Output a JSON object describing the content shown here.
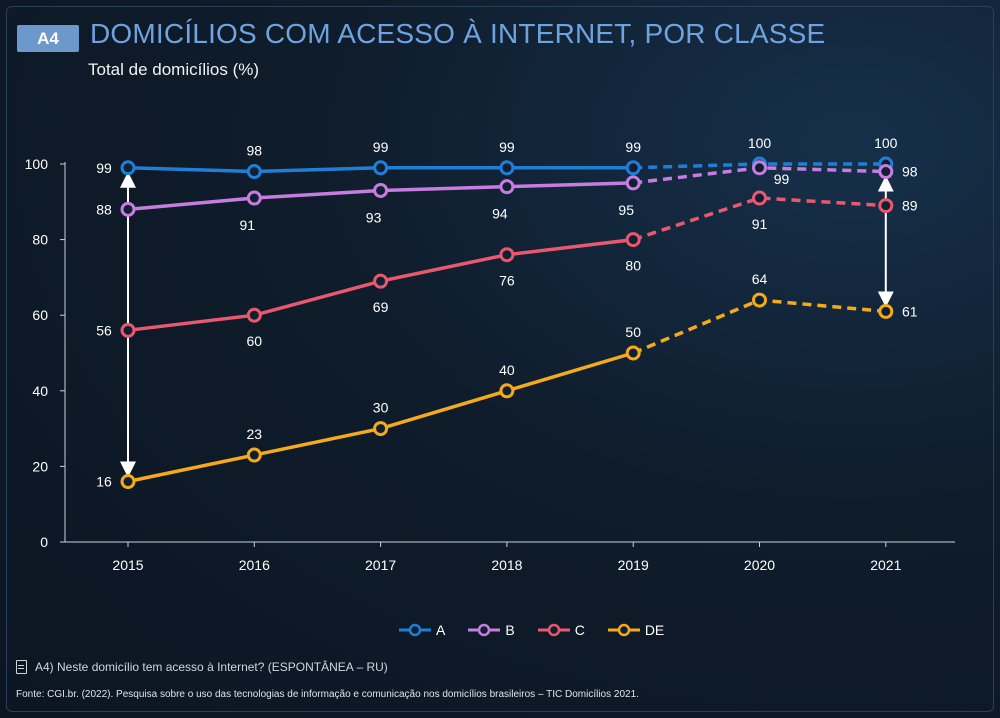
{
  "header": {
    "badge": "A4",
    "title": "DOMICÍLIOS COM ACESSO À INTERNET, POR CLASSE",
    "subtitle": "Total de domicílios (%)"
  },
  "chart_data": {
    "type": "line",
    "categories": [
      "2015",
      "2016",
      "2017",
      "2018",
      "2019",
      "2020",
      "2021"
    ],
    "ylim": [
      0,
      100
    ],
    "yticks": [
      0,
      20,
      40,
      60,
      80,
      100
    ],
    "grid": false,
    "legend_position": "bottom-center",
    "solid_through": "2019",
    "dashed_from": "2019",
    "series": [
      {
        "name": "A",
        "color": "#1f7fd6",
        "values": [
          99,
          98,
          99,
          99,
          99,
          100,
          100
        ]
      },
      {
        "name": "B",
        "color": "#c77ce0",
        "values": [
          88,
          91,
          93,
          94,
          95,
          99,
          98
        ]
      },
      {
        "name": "C",
        "color": "#e9586f",
        "values": [
          56,
          60,
          69,
          76,
          80,
          91,
          89
        ]
      },
      {
        "name": "DE",
        "color": "#f5aa1a",
        "values": [
          16,
          23,
          30,
          40,
          50,
          64,
          61
        ]
      }
    ],
    "gap_arrows": [
      {
        "category": "2015",
        "from": 16,
        "to": 99
      },
      {
        "category": "2021",
        "from": 61,
        "to": 98
      }
    ]
  },
  "footer": {
    "question": "A4) Neste domicílio tem acesso à Internet? (ESPONTÂNEA – RU)",
    "source": "Fonte: CGI.br. (2022). Pesquisa sobre o uso das tecnologias de informação e comunicação nos domicílios brasileiros – TIC Domicílios 2021."
  }
}
